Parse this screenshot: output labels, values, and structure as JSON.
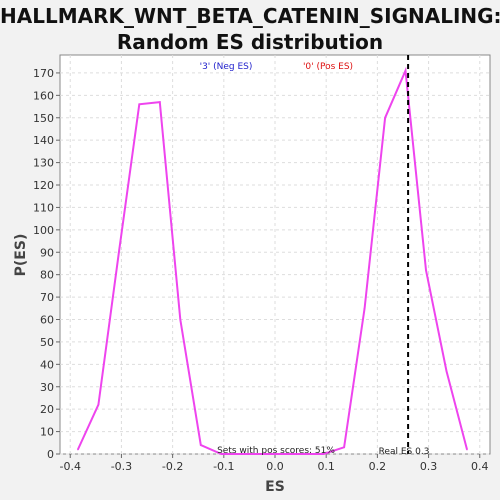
{
  "chart_data": {
    "type": "line",
    "title_line1": "HALLMARK_WNT_BETA_CATENIN_SIGNALING:",
    "title_line2": "Random ES distribution",
    "xlabel": "ES",
    "ylabel": "P(ES)",
    "xlim": [
      -0.42,
      0.42
    ],
    "ylim": [
      0,
      178
    ],
    "x_ticks": [
      -0.4,
      -0.3,
      -0.2,
      -0.1,
      0.0,
      0.1,
      0.2,
      0.3,
      0.4
    ],
    "x_tick_labels": [
      "-0.4",
      "-0.3",
      "-0.2",
      "-0.1",
      "0.0",
      "0.1",
      "0.2",
      "0.3",
      "0.4"
    ],
    "y_ticks": [
      0,
      10,
      20,
      30,
      40,
      50,
      60,
      70,
      80,
      90,
      100,
      110,
      120,
      130,
      140,
      150,
      160,
      170
    ],
    "y_tick_labels": [
      "0",
      "10",
      "20",
      "30",
      "40",
      "50",
      "60",
      "70",
      "80",
      "90",
      "100",
      "110",
      "120",
      "130",
      "140",
      "150",
      "160",
      "170"
    ],
    "grid": true,
    "series": [
      {
        "color": "#ee44ee",
        "x": [
          -0.385,
          -0.345,
          -0.305,
          -0.265,
          -0.225,
          -0.185,
          -0.145,
          -0.105,
          -0.065,
          -0.025,
          0.015,
          0.055,
          0.095,
          0.135,
          0.175,
          0.215,
          0.255,
          0.295,
          0.335,
          0.375
        ],
        "y": [
          2,
          22,
          90,
          156,
          157,
          60,
          4,
          0,
          0,
          0,
          0,
          0,
          0,
          3,
          65,
          150,
          171,
          82,
          37,
          2
        ]
      }
    ],
    "legend": [
      {
        "label": "'3' (Neg ES)",
        "color": "#2222cc"
      },
      {
        "label": "'0' (Pos ES)",
        "color": "#dd1111"
      }
    ],
    "real_es": 0.26,
    "annotations": {
      "pos_scores": "Sets with pos scores: 51%",
      "real_es_label": "Real ES 0.3"
    }
  }
}
